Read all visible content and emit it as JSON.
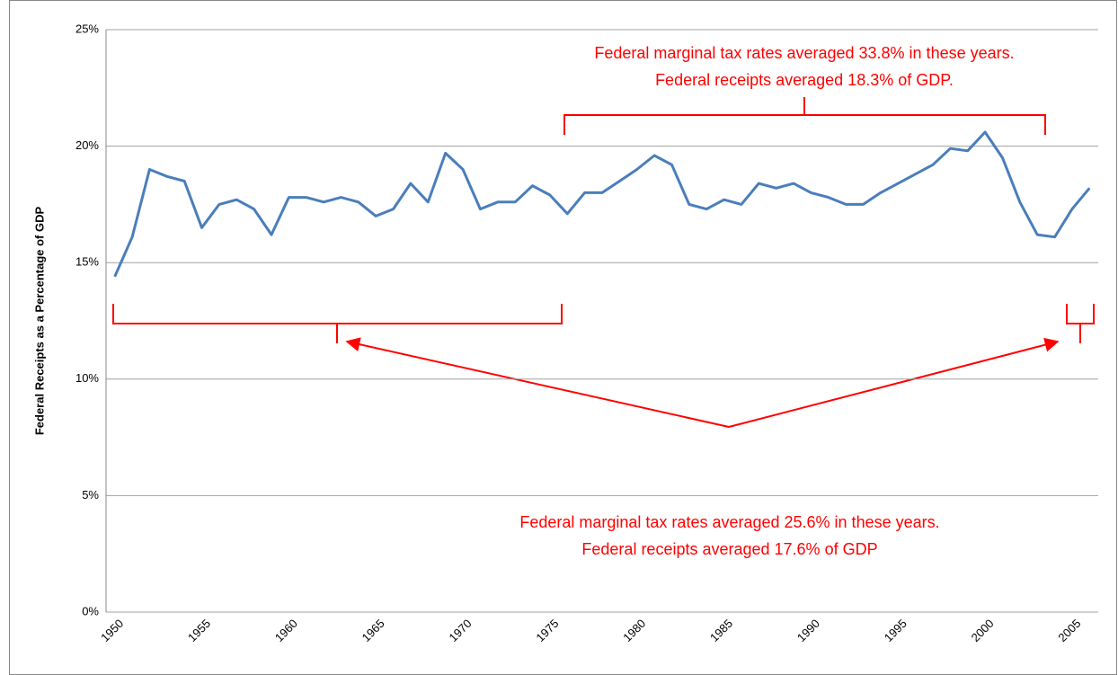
{
  "chart_data": {
    "type": "line",
    "y_label": "Federal Receipts as a Percentage of GDP",
    "categories": [
      "1950",
      null,
      null,
      null,
      null,
      "1955",
      null,
      null,
      null,
      null,
      "1960",
      null,
      null,
      null,
      null,
      "1965",
      null,
      null,
      null,
      null,
      "1970",
      null,
      null,
      null,
      null,
      "1975",
      null,
      null,
      null,
      null,
      "1980",
      null,
      null,
      null,
      null,
      "1985",
      null,
      null,
      null,
      null,
      "1990",
      null,
      null,
      null,
      null,
      "1995",
      null,
      null,
      null,
      null,
      "2000",
      null,
      null,
      null,
      null,
      "2005",
      null
    ],
    "series": [
      {
        "color": "#4a7ebb",
        "values": [
          14.4,
          16.1,
          19.0,
          18.7,
          18.5,
          16.5,
          17.5,
          17.7,
          17.3,
          16.2,
          17.8,
          17.8,
          17.6,
          17.8,
          17.6,
          17.0,
          17.3,
          18.4,
          17.6,
          19.7,
          19.0,
          17.3,
          17.6,
          17.6,
          18.3,
          17.9,
          17.1,
          18.0,
          18.0,
          18.5,
          19.0,
          19.6,
          19.2,
          17.5,
          17.3,
          17.7,
          17.5,
          18.4,
          18.2,
          18.4,
          18.0,
          17.8,
          17.5,
          17.5,
          18.0,
          18.4,
          18.8,
          19.2,
          19.9,
          19.8,
          20.6,
          19.5,
          17.6,
          16.2,
          16.1,
          17.3,
          18.2
        ]
      }
    ],
    "ylim": [
      0,
      25
    ],
    "yticks": [
      {
        "value": 0,
        "label": "0%"
      },
      {
        "value": 5,
        "label": "5%"
      },
      {
        "value": 10,
        "label": "10%"
      },
      {
        "value": 15,
        "label": "15%"
      },
      {
        "value": 20,
        "label": "20%"
      },
      {
        "value": 25,
        "label": "25%"
      }
    ],
    "grid": true,
    "annotations": [
      [
        "Federal marginal tax rates averaged 33.8% in these years.",
        "Federal receipts averaged 18.3% of GDP."
      ],
      [
        "Federal marginal tax rates averaged 25.6% in these years.",
        "Federal receipts averaged 17.6% of GDP"
      ]
    ]
  }
}
